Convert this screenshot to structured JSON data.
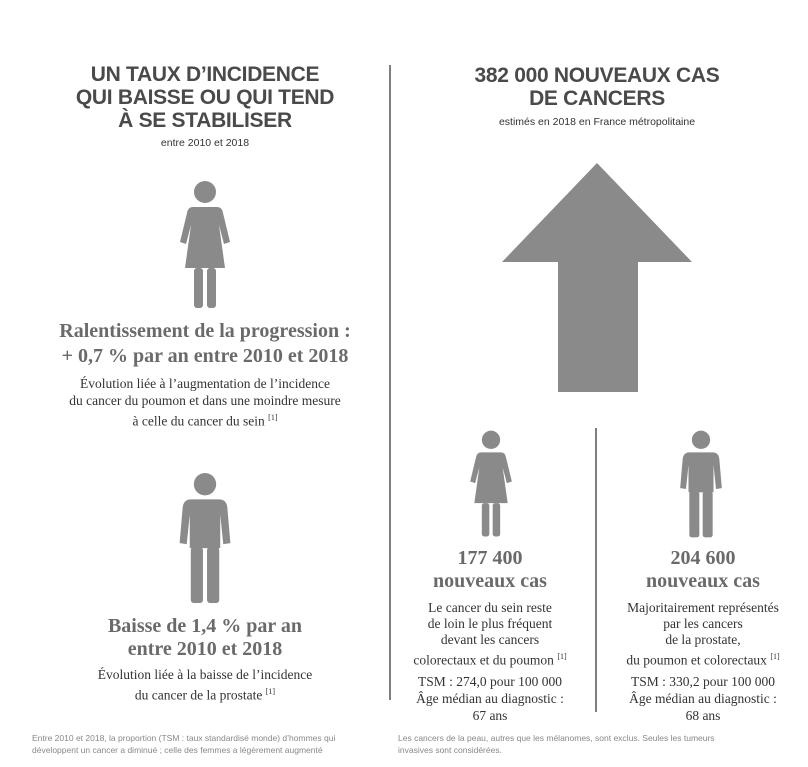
{
  "left": {
    "title": [
      "UN TAUX D’INCIDENCE",
      "QUI BAISSE OU QUI TEND",
      "À SE STABILISER"
    ],
    "subtitle": "entre 2010 et 2018",
    "women": {
      "headline": [
        "Ralentissement de la progression :",
        "+ 0,7 % par an entre 2010 et 2018"
      ],
      "text": [
        "Évolution liée à l’augmentation de l’incidence",
        "du cancer du poumon et dans une moindre mesure",
        "à celle du cancer du sein"
      ],
      "note": "[1]"
    },
    "men": {
      "headline": [
        "Baisse de 1,4 % par an",
        "entre 2010 et 2018"
      ],
      "text": [
        "Évolution liée à la baisse de l’incidence",
        "du cancer de la prostate"
      ],
      "note": "[1]"
    },
    "footnote": [
      "Entre 2010 et 2018, la proportion (TSM : taux standardisé monde) d’hommes qui",
      "développent un cancer a diminué ; celle des femmes a légèrement augmenté"
    ]
  },
  "right": {
    "title": [
      "382 000 NOUVEAUX CAS",
      "DE CANCERS"
    ],
    "subtitle": "estimés en 2018 en France métropolitaine",
    "women": {
      "count": "177 400",
      "unit": "nouveaux cas",
      "text": [
        "Le cancer du sein reste",
        "de loin le plus fréquent",
        "devant les cancers",
        "colorectaux et du poumon"
      ],
      "note": "[1]",
      "tsm": "TSM : 274,0 pour 100 000",
      "age": [
        "Âge médian au diagnostic :",
        "67 ans"
      ]
    },
    "men": {
      "count": "204 600",
      "unit": "nouveaux cas",
      "text": [
        "Majoritairement représentés",
        "par les cancers",
        "de la prostate,",
        "du poumon et colorectaux"
      ],
      "note": "[1]",
      "tsm": "TSM : 330,2 pour 100 000",
      "age": [
        "Âge médian au diagnostic :",
        "68 ans"
      ]
    },
    "footnote": [
      "Les cancers de la peau, autres que les mélanomes, sont exclus. Seules les tumeurs",
      "invasives sont considérées."
    ]
  }
}
